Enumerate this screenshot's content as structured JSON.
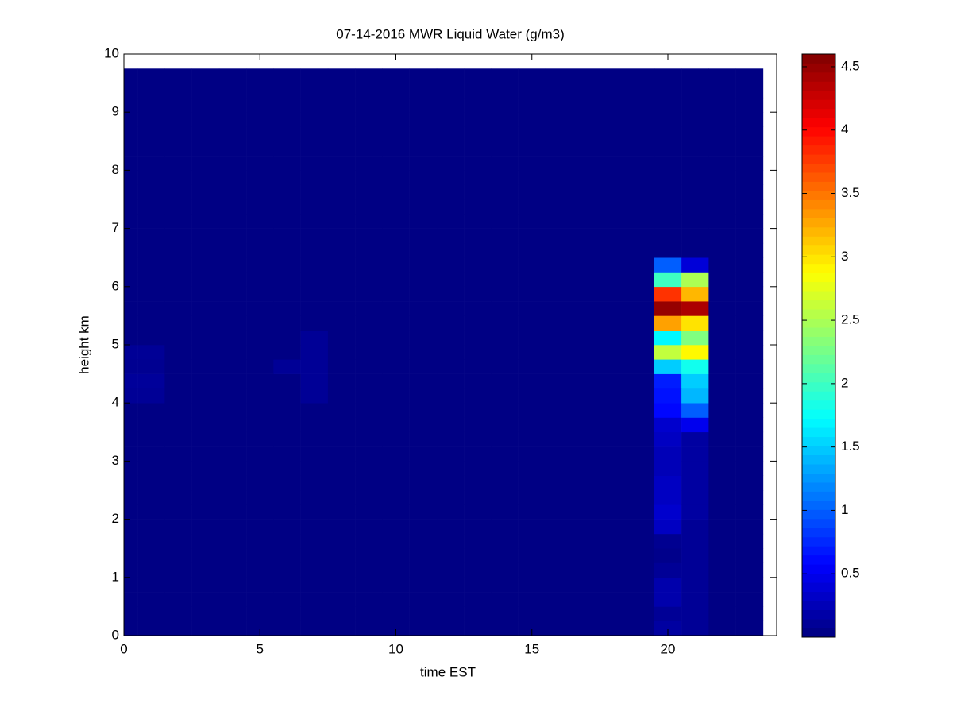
{
  "chart_data": {
    "type": "heatmap",
    "title": "07-14-2016 MWR Liquid Water (g/m3)",
    "x_label": "time EST",
    "y_label": "height km",
    "colormap": "jet",
    "x": [
      0,
      1,
      2,
      3,
      4,
      5,
      6,
      7,
      8,
      9,
      10,
      11,
      12,
      13,
      14,
      15,
      16,
      17,
      18,
      19,
      20,
      21,
      22,
      23
    ],
    "y": [
      0.125,
      0.375,
      0.625,
      0.875,
      1.125,
      1.375,
      1.625,
      1.875,
      2.125,
      2.375,
      2.625,
      2.875,
      3.125,
      3.375,
      3.625,
      3.875,
      4.125,
      4.375,
      4.625,
      4.875,
      5.125,
      5.375,
      5.625,
      5.875,
      6.125,
      6.375,
      6.625,
      6.875,
      7.125,
      7.375,
      7.625,
      7.875,
      8.125,
      8.375,
      8.625,
      8.875,
      9.125,
      9.375,
      9.625
    ],
    "z": [
      [
        0.02,
        0.02,
        0.02,
        0.02,
        0.02,
        0.02,
        0.02,
        0.02,
        0.02,
        0.02,
        0.02,
        0.02,
        0.02,
        0.02,
        0.02,
        0.02,
        0.02,
        0.02,
        0.02,
        0.02,
        0.15,
        0.1,
        0.02,
        0.02
      ],
      [
        0.02,
        0.02,
        0.02,
        0.02,
        0.02,
        0.02,
        0.02,
        0.02,
        0.02,
        0.02,
        0.02,
        0.02,
        0.02,
        0.02,
        0.02,
        0.02,
        0.02,
        0.02,
        0.02,
        0.02,
        0.1,
        0.1,
        0.02,
        0.02
      ],
      [
        0.02,
        0.02,
        0.02,
        0.02,
        0.02,
        0.02,
        0.02,
        0.02,
        0.02,
        0.02,
        0.02,
        0.02,
        0.02,
        0.02,
        0.02,
        0.02,
        0.02,
        0.02,
        0.02,
        0.02,
        0.2,
        0.1,
        0.02,
        0.02
      ],
      [
        0.02,
        0.02,
        0.02,
        0.02,
        0.02,
        0.02,
        0.02,
        0.02,
        0.02,
        0.02,
        0.02,
        0.02,
        0.02,
        0.02,
        0.02,
        0.02,
        0.02,
        0.02,
        0.02,
        0.02,
        0.2,
        0.1,
        0.02,
        0.02
      ],
      [
        0.02,
        0.02,
        0.02,
        0.02,
        0.02,
        0.02,
        0.02,
        0.02,
        0.02,
        0.02,
        0.02,
        0.02,
        0.02,
        0.02,
        0.02,
        0.02,
        0.02,
        0.02,
        0.02,
        0.02,
        0.1,
        0.1,
        0.02,
        0.02
      ],
      [
        0.02,
        0.02,
        0.02,
        0.02,
        0.02,
        0.02,
        0.02,
        0.02,
        0.02,
        0.02,
        0.02,
        0.02,
        0.02,
        0.02,
        0.02,
        0.02,
        0.02,
        0.02,
        0.02,
        0.02,
        0.05,
        0.1,
        0.02,
        0.02
      ],
      [
        0.02,
        0.02,
        0.02,
        0.02,
        0.02,
        0.02,
        0.02,
        0.02,
        0.02,
        0.02,
        0.02,
        0.02,
        0.02,
        0.02,
        0.02,
        0.02,
        0.02,
        0.02,
        0.02,
        0.02,
        0.08,
        0.1,
        0.02,
        0.02
      ],
      [
        0.02,
        0.02,
        0.02,
        0.02,
        0.02,
        0.02,
        0.02,
        0.02,
        0.02,
        0.02,
        0.02,
        0.02,
        0.02,
        0.02,
        0.02,
        0.02,
        0.02,
        0.02,
        0.02,
        0.02,
        0.3,
        0.1,
        0.02,
        0.02
      ],
      [
        0.02,
        0.02,
        0.02,
        0.02,
        0.02,
        0.02,
        0.02,
        0.02,
        0.02,
        0.02,
        0.02,
        0.02,
        0.02,
        0.02,
        0.02,
        0.02,
        0.02,
        0.02,
        0.02,
        0.02,
        0.35,
        0.15,
        0.02,
        0.02
      ],
      [
        0.02,
        0.02,
        0.02,
        0.02,
        0.02,
        0.02,
        0.02,
        0.02,
        0.02,
        0.02,
        0.02,
        0.02,
        0.02,
        0.02,
        0.02,
        0.02,
        0.02,
        0.02,
        0.02,
        0.02,
        0.3,
        0.15,
        0.02,
        0.02
      ],
      [
        0.02,
        0.02,
        0.02,
        0.02,
        0.02,
        0.02,
        0.02,
        0.02,
        0.02,
        0.02,
        0.02,
        0.02,
        0.02,
        0.02,
        0.02,
        0.02,
        0.02,
        0.02,
        0.02,
        0.02,
        0.3,
        0.15,
        0.02,
        0.02
      ],
      [
        0.02,
        0.02,
        0.02,
        0.02,
        0.02,
        0.02,
        0.02,
        0.02,
        0.02,
        0.02,
        0.02,
        0.02,
        0.02,
        0.02,
        0.02,
        0.02,
        0.02,
        0.02,
        0.02,
        0.02,
        0.25,
        0.15,
        0.02,
        0.02
      ],
      [
        0.02,
        0.02,
        0.02,
        0.02,
        0.02,
        0.02,
        0.02,
        0.02,
        0.02,
        0.02,
        0.02,
        0.02,
        0.02,
        0.02,
        0.02,
        0.02,
        0.02,
        0.02,
        0.02,
        0.02,
        0.25,
        0.15,
        0.02,
        0.02
      ],
      [
        0.02,
        0.02,
        0.02,
        0.02,
        0.02,
        0.02,
        0.02,
        0.02,
        0.02,
        0.02,
        0.02,
        0.02,
        0.02,
        0.02,
        0.02,
        0.02,
        0.02,
        0.02,
        0.02,
        0.02,
        0.3,
        0.15,
        0.02,
        0.02
      ],
      [
        0.02,
        0.02,
        0.02,
        0.02,
        0.02,
        0.02,
        0.02,
        0.02,
        0.02,
        0.02,
        0.02,
        0.02,
        0.02,
        0.02,
        0.02,
        0.02,
        0.02,
        0.02,
        0.02,
        0.02,
        0.35,
        0.5,
        0.02,
        0.02
      ],
      [
        0.02,
        0.02,
        0.02,
        0.02,
        0.02,
        0.02,
        0.02,
        0.02,
        0.02,
        0.02,
        0.02,
        0.02,
        0.02,
        0.02,
        0.02,
        0.02,
        0.02,
        0.02,
        0.02,
        0.02,
        0.6,
        1.0,
        0.02,
        0.02
      ],
      [
        0.1,
        0.1,
        0.02,
        0.02,
        0.02,
        0.02,
        0.02,
        0.1,
        0.02,
        0.02,
        0.02,
        0.02,
        0.02,
        0.02,
        0.02,
        0.02,
        0.02,
        0.02,
        0.02,
        0.02,
        0.65,
        1.4,
        0.02,
        0.02
      ],
      [
        0.12,
        0.12,
        0.02,
        0.02,
        0.02,
        0.02,
        0.02,
        0.1,
        0.02,
        0.02,
        0.02,
        0.02,
        0.02,
        0.02,
        0.02,
        0.02,
        0.02,
        0.02,
        0.02,
        0.02,
        0.7,
        1.5,
        0.02,
        0.02
      ],
      [
        0.08,
        0.08,
        0.02,
        0.02,
        0.02,
        0.02,
        0.1,
        0.1,
        0.02,
        0.02,
        0.02,
        0.02,
        0.02,
        0.02,
        0.02,
        0.02,
        0.02,
        0.02,
        0.02,
        0.02,
        1.5,
        1.8,
        0.02,
        0.02
      ],
      [
        0.1,
        0.1,
        0.02,
        0.02,
        0.02,
        0.02,
        0.02,
        0.1,
        0.02,
        0.02,
        0.02,
        0.02,
        0.02,
        0.02,
        0.02,
        0.02,
        0.02,
        0.02,
        0.02,
        0.02,
        2.6,
        2.9,
        0.02,
        0.02
      ],
      [
        0.02,
        0.02,
        0.02,
        0.02,
        0.02,
        0.02,
        0.02,
        0.1,
        0.02,
        0.02,
        0.02,
        0.02,
        0.02,
        0.02,
        0.02,
        0.02,
        0.02,
        0.02,
        0.02,
        0.02,
        1.7,
        2.3,
        0.02,
        0.02
      ],
      [
        0.02,
        0.02,
        0.02,
        0.02,
        0.02,
        0.02,
        0.02,
        0.02,
        0.02,
        0.02,
        0.02,
        0.02,
        0.02,
        0.02,
        0.02,
        0.02,
        0.02,
        0.02,
        0.02,
        0.02,
        3.3,
        3.0,
        0.02,
        0.02
      ],
      [
        0.02,
        0.02,
        0.02,
        0.02,
        0.02,
        0.02,
        0.02,
        0.02,
        0.02,
        0.02,
        0.02,
        0.02,
        0.02,
        0.02,
        0.02,
        0.02,
        0.02,
        0.02,
        0.02,
        0.02,
        4.5,
        4.4,
        0.02,
        0.02
      ],
      [
        0.02,
        0.02,
        0.02,
        0.02,
        0.02,
        0.02,
        0.02,
        0.02,
        0.02,
        0.02,
        0.02,
        0.02,
        0.02,
        0.02,
        0.02,
        0.02,
        0.02,
        0.02,
        0.02,
        0.02,
        3.8,
        3.2,
        0.02,
        0.02
      ],
      [
        0.02,
        0.02,
        0.02,
        0.02,
        0.02,
        0.02,
        0.02,
        0.02,
        0.02,
        0.02,
        0.02,
        0.02,
        0.02,
        0.02,
        0.02,
        0.02,
        0.02,
        0.02,
        0.02,
        0.02,
        2.0,
        2.5,
        0.02,
        0.02
      ],
      [
        0.02,
        0.02,
        0.02,
        0.02,
        0.02,
        0.02,
        0.02,
        0.02,
        0.02,
        0.02,
        0.02,
        0.02,
        0.02,
        0.02,
        0.02,
        0.02,
        0.02,
        0.02,
        0.02,
        0.02,
        1.0,
        0.4,
        0.02,
        0.02
      ],
      [
        0.02,
        0.02,
        0.02,
        0.02,
        0.02,
        0.02,
        0.02,
        0.02,
        0.02,
        0.02,
        0.02,
        0.02,
        0.02,
        0.02,
        0.02,
        0.02,
        0.02,
        0.02,
        0.02,
        0.02,
        0.02,
        0.02,
        0.02,
        0.02
      ],
      [
        0.02,
        0.02,
        0.02,
        0.02,
        0.02,
        0.02,
        0.02,
        0.02,
        0.02,
        0.02,
        0.02,
        0.02,
        0.02,
        0.02,
        0.02,
        0.02,
        0.02,
        0.02,
        0.02,
        0.02,
        0.02,
        0.02,
        0.02,
        0.02
      ],
      [
        0.02,
        0.02,
        0.02,
        0.02,
        0.02,
        0.02,
        0.02,
        0.02,
        0.02,
        0.02,
        0.02,
        0.02,
        0.02,
        0.02,
        0.02,
        0.02,
        0.02,
        0.02,
        0.02,
        0.02,
        0.02,
        0.02,
        0.02,
        0.02
      ],
      [
        0.02,
        0.02,
        0.02,
        0.02,
        0.02,
        0.02,
        0.02,
        0.02,
        0.02,
        0.02,
        0.02,
        0.02,
        0.02,
        0.02,
        0.02,
        0.02,
        0.02,
        0.02,
        0.02,
        0.02,
        0.02,
        0.02,
        0.02,
        0.02
      ],
      [
        0.02,
        0.02,
        0.02,
        0.02,
        0.02,
        0.02,
        0.02,
        0.02,
        0.02,
        0.02,
        0.02,
        0.02,
        0.02,
        0.02,
        0.02,
        0.02,
        0.02,
        0.02,
        0.02,
        0.02,
        0.02,
        0.02,
        0.02,
        0.02
      ],
      [
        0.02,
        0.02,
        0.02,
        0.02,
        0.02,
        0.02,
        0.02,
        0.02,
        0.02,
        0.02,
        0.02,
        0.02,
        0.02,
        0.02,
        0.02,
        0.02,
        0.02,
        0.02,
        0.02,
        0.02,
        0.02,
        0.02,
        0.02,
        0.02
      ],
      [
        0.02,
        0.02,
        0.02,
        0.02,
        0.02,
        0.02,
        0.02,
        0.02,
        0.02,
        0.02,
        0.02,
        0.02,
        0.02,
        0.02,
        0.02,
        0.02,
        0.02,
        0.02,
        0.02,
        0.02,
        0.02,
        0.02,
        0.02,
        0.02
      ],
      [
        0.02,
        0.02,
        0.02,
        0.02,
        0.02,
        0.02,
        0.02,
        0.02,
        0.02,
        0.02,
        0.02,
        0.02,
        0.02,
        0.02,
        0.02,
        0.02,
        0.02,
        0.02,
        0.02,
        0.02,
        0.02,
        0.02,
        0.02,
        0.02
      ],
      [
        0.02,
        0.02,
        0.02,
        0.02,
        0.02,
        0.02,
        0.02,
        0.02,
        0.02,
        0.02,
        0.02,
        0.02,
        0.02,
        0.02,
        0.02,
        0.02,
        0.02,
        0.02,
        0.02,
        0.02,
        0.02,
        0.02,
        0.02,
        0.02
      ],
      [
        0.02,
        0.02,
        0.02,
        0.02,
        0.02,
        0.02,
        0.02,
        0.02,
        0.02,
        0.02,
        0.02,
        0.02,
        0.02,
        0.02,
        0.02,
        0.02,
        0.02,
        0.02,
        0.02,
        0.02,
        0.02,
        0.02,
        0.02,
        0.02
      ],
      [
        0.02,
        0.02,
        0.02,
        0.02,
        0.02,
        0.02,
        0.02,
        0.02,
        0.02,
        0.02,
        0.02,
        0.02,
        0.02,
        0.02,
        0.02,
        0.02,
        0.02,
        0.02,
        0.02,
        0.02,
        0.02,
        0.02,
        0.02,
        0.02
      ],
      [
        0.02,
        0.02,
        0.02,
        0.02,
        0.02,
        0.02,
        0.02,
        0.02,
        0.02,
        0.02,
        0.02,
        0.02,
        0.02,
        0.02,
        0.02,
        0.02,
        0.02,
        0.02,
        0.02,
        0.02,
        0.02,
        0.02,
        0.02,
        0.02
      ],
      [
        0.02,
        0.02,
        0.02,
        0.02,
        0.02,
        0.02,
        0.02,
        0.02,
        0.02,
        0.02,
        0.02,
        0.02,
        0.02,
        0.02,
        0.02,
        0.02,
        0.02,
        0.02,
        0.02,
        0.02,
        0.02,
        0.02,
        0.02,
        0.02
      ]
    ],
    "xlim": [
      0,
      24
    ],
    "ylim": [
      0,
      10
    ],
    "xticks": [
      0,
      5,
      10,
      15,
      20
    ],
    "yticks": [
      0,
      1,
      2,
      3,
      4,
      5,
      6,
      7,
      8,
      9,
      10
    ],
    "clim": [
      0,
      4.6
    ],
    "cticks": [
      0.5,
      1,
      1.5,
      2,
      2.5,
      3,
      3.5,
      4,
      4.5
    ]
  }
}
